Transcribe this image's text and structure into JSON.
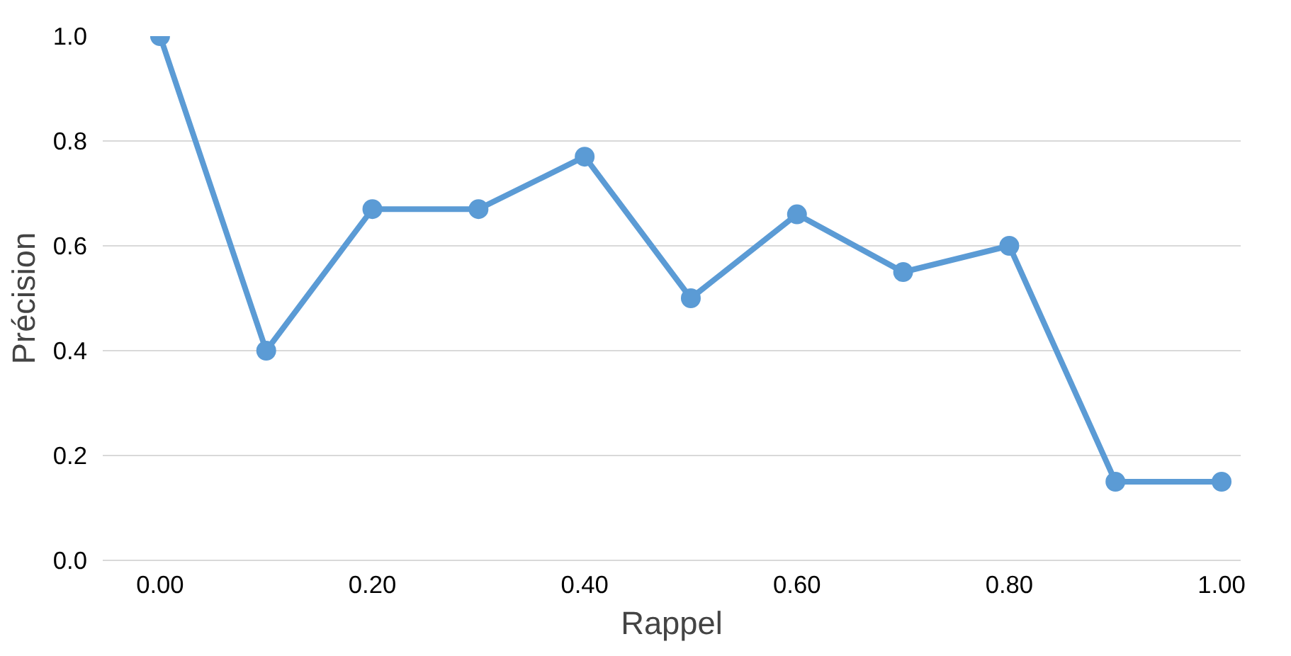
{
  "chart_data": {
    "type": "line",
    "xlabel": "Rappel",
    "ylabel": "Précision",
    "x": [
      0,
      0.1,
      0.2,
      0.3,
      0.4,
      0.5,
      0.6,
      0.7,
      0.8,
      0.9,
      1.0
    ],
    "series": [
      {
        "color": "#5b9bd5",
        "values": [
          1.0,
          0.4,
          0.67,
          0.67,
          0.77,
          0.5,
          0.66,
          0.55,
          0.6,
          0.15,
          0.15
        ]
      }
    ],
    "xlim": [
      -0.054,
      1.018
    ],
    "ylim": [
      0,
      1.0
    ],
    "xticks": [
      {
        "value": 0,
        "label": "0.00"
      },
      {
        "value": 0.2,
        "label": "0.20"
      },
      {
        "value": 0.4,
        "label": "0.40"
      },
      {
        "value": 0.6,
        "label": "0.60"
      },
      {
        "value": 0.8,
        "label": "0.80"
      },
      {
        "value": 1.0,
        "label": "1.00"
      }
    ],
    "yticks": [
      {
        "value": 0,
        "label": "0.0"
      },
      {
        "value": 0.2,
        "label": "0.2"
      },
      {
        "value": 0.4,
        "label": "0.4"
      },
      {
        "value": 0.6,
        "label": "0.6"
      },
      {
        "value": 0.8,
        "label": "0.8"
      },
      {
        "value": 1.0,
        "label": "1.0"
      }
    ],
    "grid": "y",
    "marker": "circle",
    "line_style": "solid"
  }
}
